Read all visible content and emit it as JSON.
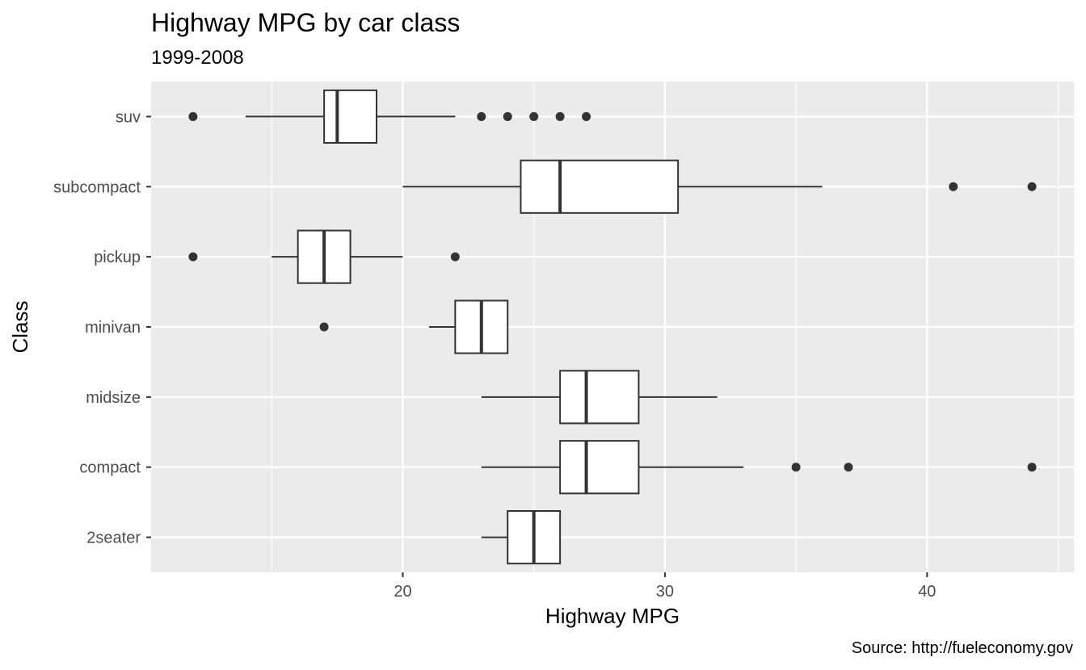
{
  "chart_data": {
    "type": "boxplot",
    "title": "Highway MPG by car class",
    "subtitle": "1999-2008",
    "xlabel": "Highway MPG",
    "ylabel": "Class",
    "caption": "Source: http://fueleconomy.gov",
    "xlim": [
      10.4,
      45.6
    ],
    "x_ticks": [
      20,
      30,
      40
    ],
    "x_minor": [
      15,
      25,
      35,
      45
    ],
    "orientation": "horizontal",
    "grid": true,
    "panel_color": "#ebebeb",
    "box_fill": "#ffffff",
    "line_color": "#333333",
    "categories": [
      "2seater",
      "compact",
      "midsize",
      "minivan",
      "pickup",
      "subcompact",
      "suv"
    ],
    "boxes": [
      {
        "category": "2seater",
        "whisker_low": 23,
        "q1": 24,
        "median": 25,
        "q3": 26,
        "whisker_high": 26,
        "outliers": []
      },
      {
        "category": "compact",
        "whisker_low": 23,
        "q1": 26,
        "median": 27,
        "q3": 29,
        "whisker_high": 33,
        "outliers": [
          35,
          37,
          44
        ]
      },
      {
        "category": "midsize",
        "whisker_low": 23,
        "q1": 26,
        "median": 27,
        "q3": 29,
        "whisker_high": 32,
        "outliers": []
      },
      {
        "category": "minivan",
        "whisker_low": 21,
        "q1": 22,
        "median": 23,
        "q3": 24,
        "whisker_high": 24,
        "outliers": [
          17
        ]
      },
      {
        "category": "pickup",
        "whisker_low": 15,
        "q1": 16,
        "median": 17,
        "q3": 18,
        "whisker_high": 20,
        "outliers": [
          12,
          22
        ]
      },
      {
        "category": "subcompact",
        "whisker_low": 20,
        "q1": 24.5,
        "median": 26,
        "q3": 30.5,
        "whisker_high": 36,
        "outliers": [
          41,
          44
        ]
      },
      {
        "category": "suv",
        "whisker_low": 14,
        "q1": 17,
        "median": 17.5,
        "q3": 19,
        "whisker_high": 22,
        "outliers": [
          12,
          23,
          24,
          25,
          26,
          27
        ]
      }
    ]
  }
}
